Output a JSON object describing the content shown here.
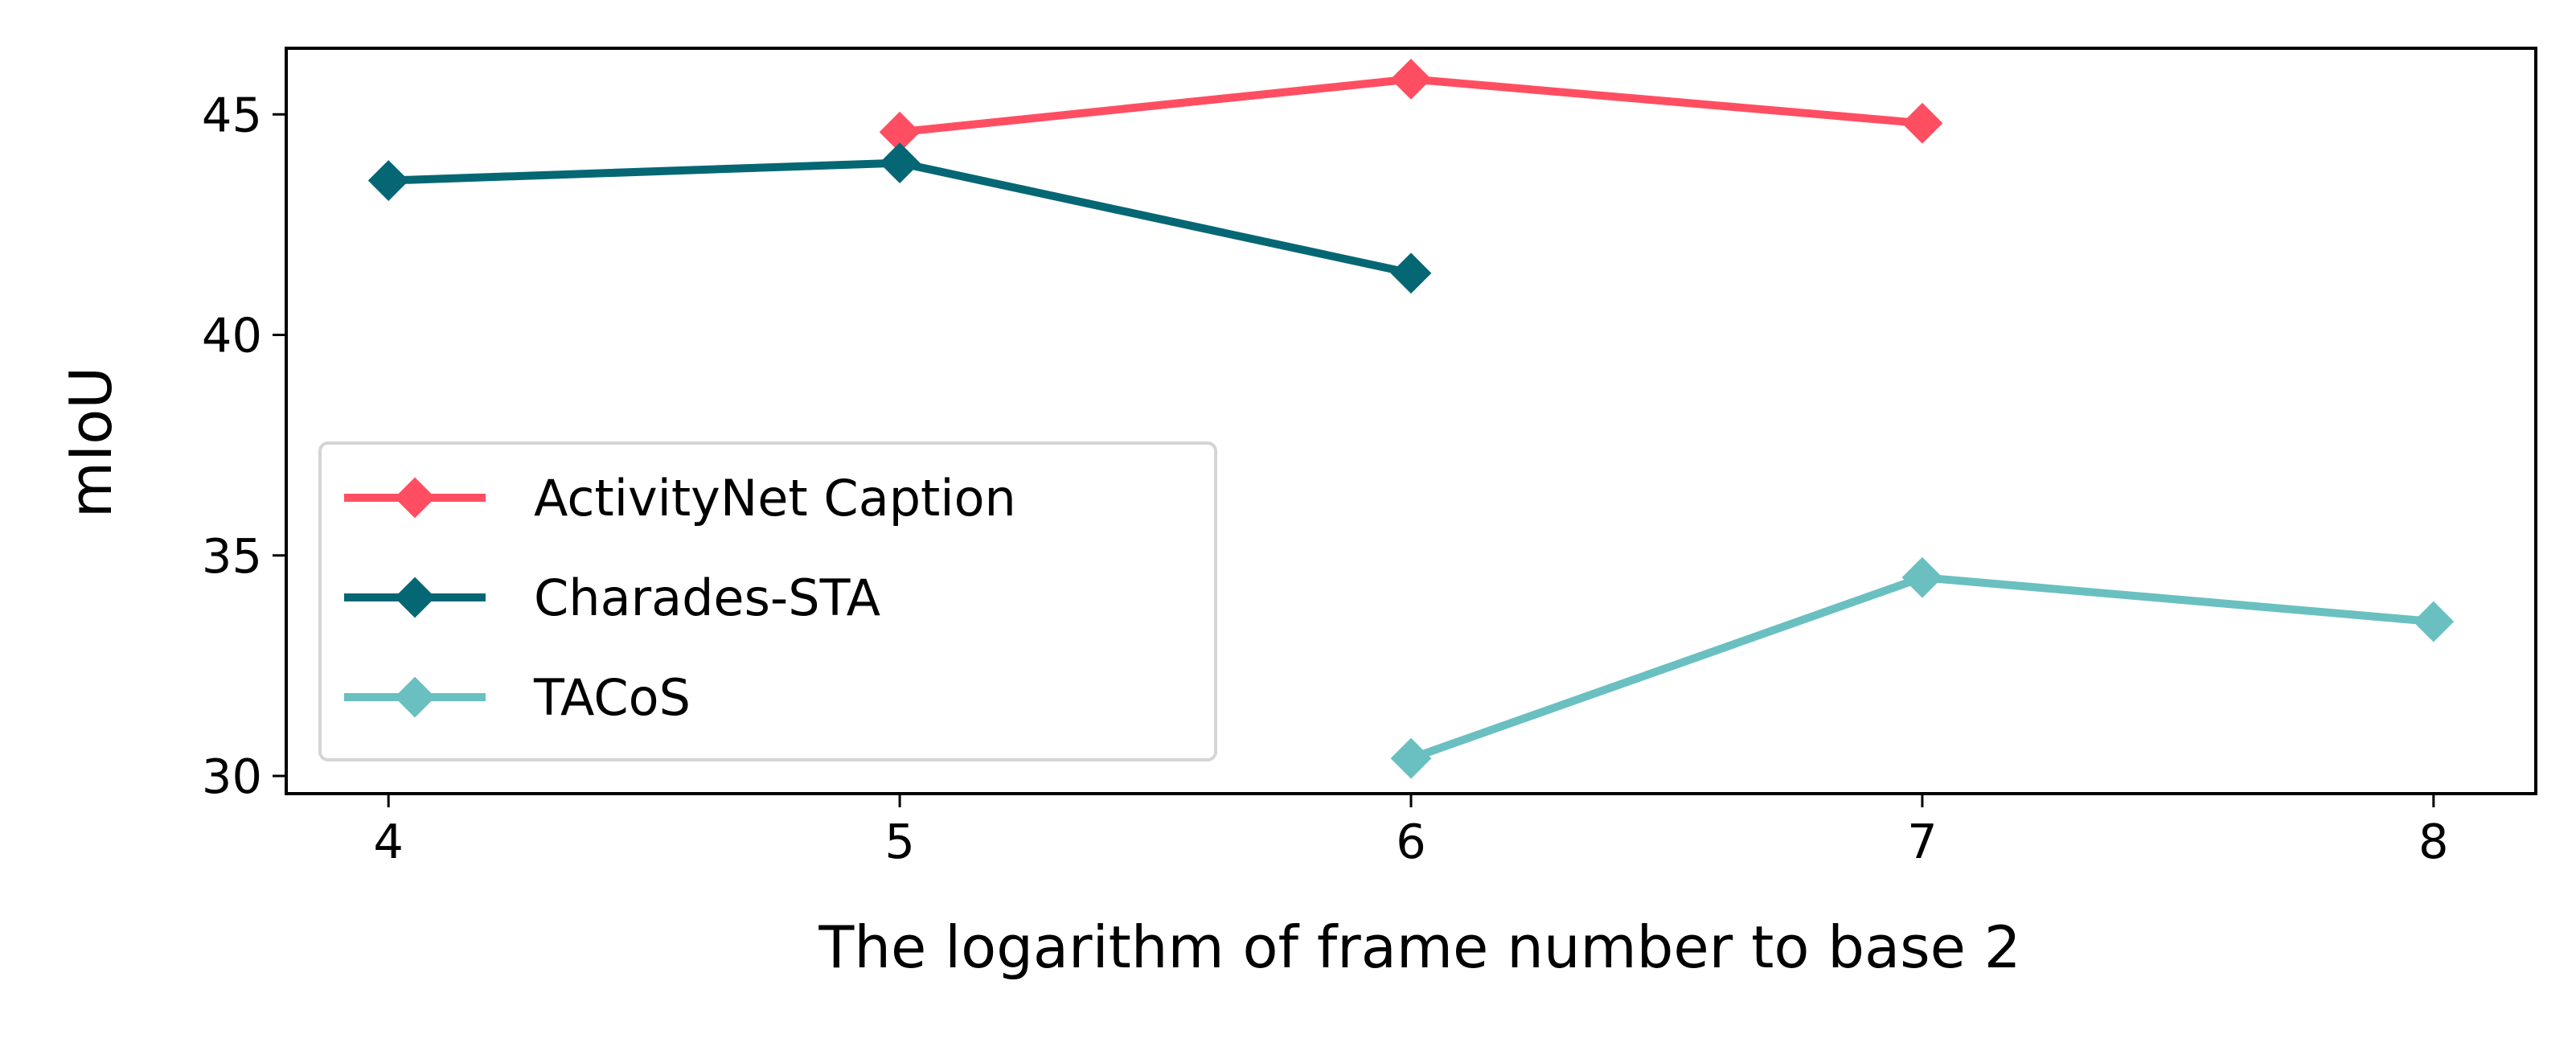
{
  "chart_data": {
    "type": "line",
    "title": "",
    "xlabel": "The logarithm of frame number to base 2",
    "ylabel": "mIoU",
    "xlim": [
      3.8,
      8.2
    ],
    "ylim": [
      29.6,
      46.5
    ],
    "xticks": [
      4,
      5,
      6,
      7,
      8
    ],
    "yticks": [
      30,
      35,
      40,
      45
    ],
    "grid": false,
    "legend_position": "lower-left",
    "marker": "diamond",
    "series": [
      {
        "name": "ActivityNet Caption",
        "color": "#ff4e62",
        "x": [
          5,
          6,
          7
        ],
        "y": [
          44.6,
          45.8,
          44.8
        ]
      },
      {
        "name": "Charades-STA",
        "color": "#066774",
        "x": [
          4,
          5,
          6
        ],
        "y": [
          43.5,
          43.9,
          41.4
        ]
      },
      {
        "name": "TACoS",
        "color": "#6ac0c0",
        "x": [
          6,
          7,
          8
        ],
        "y": [
          30.4,
          34.5,
          33.5
        ]
      }
    ]
  }
}
